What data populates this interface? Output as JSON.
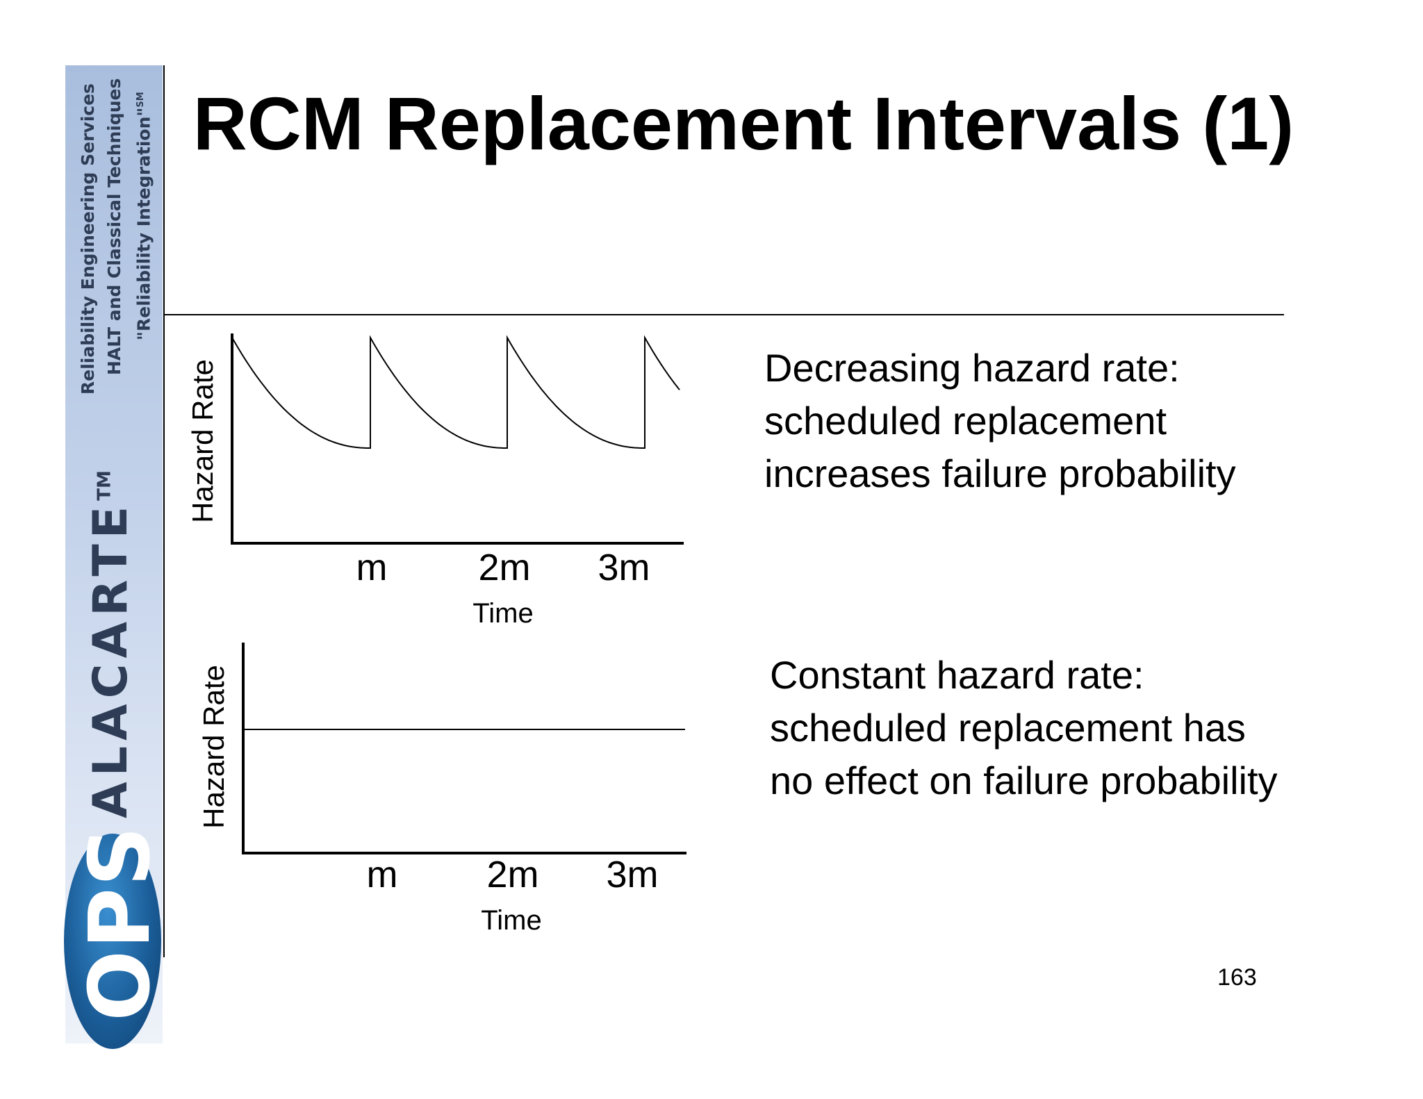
{
  "sidebar": {
    "line1": "Reliability Engineering Services",
    "line2": "HALT and Classical Techniques",
    "line3": "\"Reliability Integration\"",
    "line3_mark": "SM",
    "brand": "ALACARTE",
    "brand_mark": "TM",
    "logo": "OPS"
  },
  "slide": {
    "title": "RCM Replacement Intervals (1)",
    "page_number": "163"
  },
  "chart_data": [
    {
      "type": "line",
      "ylabel": "Hazard Rate",
      "xlabel": "Time",
      "x_ticks": [
        "m",
        "2m",
        "3m"
      ],
      "description": "Decreasing hazard rate: scheduled replacement increases failure probability",
      "series": [
        {
          "pattern": "decreasing-sawtooth",
          "reset_at": [
            "m",
            "2m",
            "3m"
          ]
        }
      ]
    },
    {
      "type": "line",
      "ylabel": "Hazard Rate",
      "xlabel": "Time",
      "x_ticks": [
        "m",
        "2m",
        "3m"
      ],
      "description": "Constant hazard rate: scheduled replacement has no effect on failure probability",
      "series": [
        {
          "pattern": "constant"
        }
      ]
    }
  ]
}
